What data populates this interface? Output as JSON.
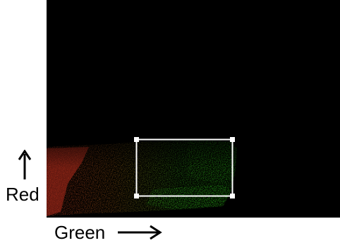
{
  "axes": {
    "y_label": "Red",
    "x_label": "Green"
  },
  "colors": {
    "background": "#000000",
    "red_channel": "#c0301a",
    "green_channel": "#2fc21c",
    "selection": "#ffffff"
  },
  "icons": {
    "y_arrow": "arrow-up-icon",
    "x_arrow": "arrow-right-icon",
    "handle": "square-handle-icon"
  }
}
